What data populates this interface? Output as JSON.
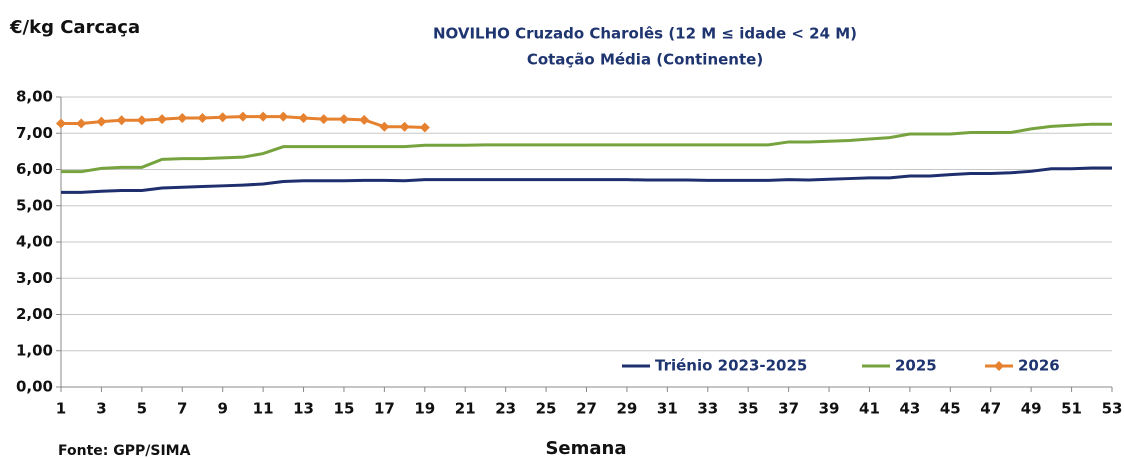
{
  "chart_data": {
    "type": "line",
    "title": "NOVILHO Cruzado Charolês  (12 M ≤ idade < 24 M)",
    "subtitle": "Cotação Média (Continente)",
    "y_label": "€/kg Carcaça",
    "x_label": "Semana",
    "source": "Fonte: GPP/SIMA",
    "x": [
      1,
      2,
      3,
      4,
      5,
      6,
      7,
      8,
      9,
      10,
      11,
      12,
      13,
      14,
      15,
      16,
      17,
      18,
      19,
      20,
      21,
      22,
      23,
      24,
      25,
      26,
      27,
      28,
      29,
      30,
      31,
      32,
      33,
      34,
      35,
      36,
      37,
      38,
      39,
      40,
      41,
      42,
      43,
      44,
      45,
      46,
      47,
      48,
      49,
      50,
      51,
      52,
      53
    ],
    "xlim": [
      1,
      53
    ],
    "xticks": [
      1,
      3,
      5,
      7,
      9,
      11,
      13,
      15,
      17,
      19,
      21,
      23,
      25,
      27,
      29,
      31,
      33,
      35,
      37,
      39,
      41,
      43,
      45,
      47,
      49,
      51,
      53
    ],
    "ylim": [
      0,
      8
    ],
    "yticks": [
      {
        "value": 0,
        "label": "0,00"
      },
      {
        "value": 1,
        "label": "1,00"
      },
      {
        "value": 2,
        "label": "2,00"
      },
      {
        "value": 3,
        "label": "3,00"
      },
      {
        "value": 4,
        "label": "4,00"
      },
      {
        "value": 5,
        "label": "5,00"
      },
      {
        "value": 6,
        "label": "6,00"
      },
      {
        "value": 7,
        "label": "7,00"
      },
      {
        "value": 8,
        "label": "8,00"
      }
    ],
    "grid": true,
    "legend": "bottom-right",
    "series": [
      {
        "name": "Triénio 2023-2025",
        "color": "#1f2f6e",
        "marker": false,
        "values": [
          5.37,
          5.37,
          5.4,
          5.42,
          5.42,
          5.49,
          5.51,
          5.53,
          5.55,
          5.57,
          5.6,
          5.67,
          5.69,
          5.69,
          5.69,
          5.7,
          5.7,
          5.69,
          5.72,
          5.72,
          5.72,
          5.72,
          5.72,
          5.72,
          5.72,
          5.72,
          5.72,
          5.72,
          5.72,
          5.71,
          5.71,
          5.71,
          5.7,
          5.7,
          5.7,
          5.7,
          5.72,
          5.71,
          5.73,
          5.75,
          5.77,
          5.77,
          5.82,
          5.82,
          5.86,
          5.89,
          5.89,
          5.91,
          5.95,
          6.02,
          6.02,
          6.04,
          6.04
        ]
      },
      {
        "name": "2025",
        "color": "#77a33f",
        "marker": false,
        "values": [
          5.94,
          5.94,
          6.03,
          6.06,
          6.06,
          6.28,
          6.3,
          6.3,
          6.32,
          6.34,
          6.44,
          6.63,
          6.63,
          6.63,
          6.63,
          6.63,
          6.63,
          6.63,
          6.67,
          6.67,
          6.67,
          6.68,
          6.68,
          6.68,
          6.68,
          6.68,
          6.68,
          6.68,
          6.68,
          6.68,
          6.68,
          6.68,
          6.68,
          6.68,
          6.68,
          6.68,
          6.76,
          6.76,
          6.78,
          6.8,
          6.84,
          6.88,
          6.98,
          6.98,
          6.98,
          7.02,
          7.02,
          7.02,
          7.12,
          7.19,
          7.22,
          7.25,
          7.25
        ]
      },
      {
        "name": "2026",
        "color": "#e6812f",
        "marker": true,
        "values": [
          7.27,
          7.27,
          7.32,
          7.36,
          7.36,
          7.39,
          7.42,
          7.42,
          7.44,
          7.46,
          7.46,
          7.46,
          7.42,
          7.39,
          7.39,
          7.37,
          7.18,
          7.18,
          7.16,
          null,
          null,
          null,
          null,
          null,
          null,
          null,
          null,
          null,
          null,
          null,
          null,
          null,
          null,
          null,
          null,
          null,
          null,
          null,
          null,
          null,
          null,
          null,
          null,
          null,
          null,
          null,
          null,
          null,
          null,
          null,
          null,
          null,
          null
        ]
      }
    ]
  }
}
